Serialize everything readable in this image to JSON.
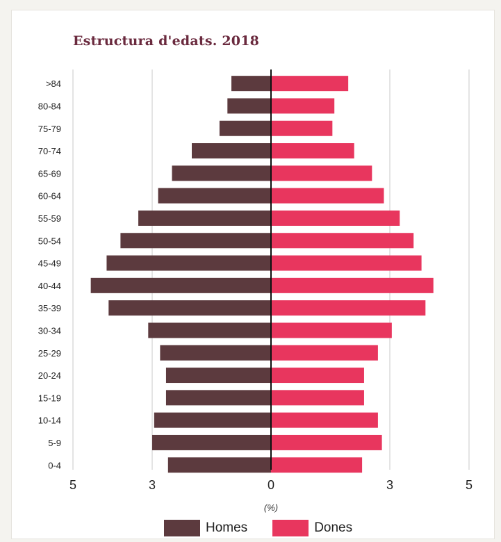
{
  "chart_data": {
    "type": "bar",
    "title": "Estructura d'edats. 2018",
    "xlabel": "(%)",
    "ylabel": "",
    "categories": [
      ">84",
      "80-84",
      "75-79",
      "70-74",
      "65-69",
      "60-64",
      "55-59",
      "50-54",
      "45-49",
      "40-44",
      "35-39",
      "30-34",
      "25-29",
      "20-24",
      "15-19",
      "10-14",
      "5-9",
      "0-4"
    ],
    "series": [
      {
        "name": "Homes",
        "color": "#5c3a3e",
        "side": "left",
        "values": [
          1.0,
          1.1,
          1.3,
          2.0,
          2.5,
          2.85,
          3.35,
          3.8,
          4.15,
          4.55,
          4.1,
          3.1,
          2.8,
          2.65,
          2.65,
          2.95,
          3.0,
          2.6
        ]
      },
      {
        "name": "Dones",
        "color": "#e8365e",
        "side": "right",
        "values": [
          1.95,
          1.6,
          1.55,
          2.1,
          2.55,
          2.85,
          3.25,
          3.6,
          3.8,
          4.1,
          3.9,
          3.05,
          2.7,
          2.35,
          2.35,
          2.7,
          2.8,
          2.3
        ]
      }
    ],
    "xticks": [
      {
        "value": -5,
        "label": "5"
      },
      {
        "value": -3,
        "label": "3"
      },
      {
        "value": 0,
        "label": "0"
      },
      {
        "value": 3,
        "label": "3"
      },
      {
        "value": 5,
        "label": "5"
      }
    ],
    "xlim": [
      -5,
      5
    ],
    "grid": true,
    "legend_position": "bottom-center"
  }
}
